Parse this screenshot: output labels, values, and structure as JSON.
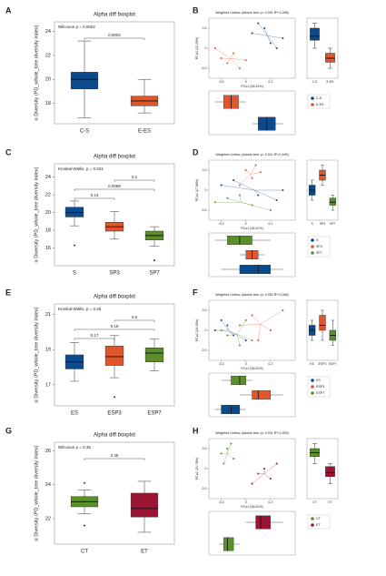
{
  "chart_data": [
    {
      "type": "boxplot",
      "panel": "A",
      "title": "Alpha diff boxplot",
      "annotation": "Wilcoxon p = 0.0002",
      "ylabel": "α Diversity (PD_whole_tree diversity index)",
      "categories": [
        "C-S",
        "E-ES"
      ],
      "colors": [
        "#0b4a8b",
        "#e0552a"
      ],
      "ylim": [
        16.3,
        24.8
      ],
      "yticks": [
        18,
        20,
        22,
        24
      ],
      "boxes": [
        {
          "min": 16.8,
          "q1": 19.2,
          "median": 20,
          "q3": 20.6,
          "max": 23.2,
          "outliers": []
        },
        {
          "min": 17.2,
          "q1": 17.8,
          "median": 18.2,
          "q3": 18.6,
          "max": 20,
          "outliers": []
        }
      ],
      "comparisons": [
        {
          "label": "0.0002",
          "pair": [
            "C-S",
            "E-ES"
          ]
        }
      ]
    },
    {
      "type": "pcoa",
      "panel": "B",
      "title": "Weighted Unifrac (Adonis test: p= 0.001 R²=0.288)",
      "xlabel": "PCo1 (26.51%)",
      "ylabel": "PCo2 (22.25%)",
      "groups": [
        "C-S",
        "E-ES"
      ],
      "colors": [
        "#0b4a8b",
        "#e0552a"
      ],
      "xlim": [
        -0.3,
        0.4
      ],
      "ylim": [
        -0.3,
        0.3
      ],
      "xticks": [
        -0.2,
        0,
        0.2
      ],
      "yticks": [
        -0.2,
        0,
        0.2
      ],
      "points": [
        {
          "x": [
            0.05,
            0.15,
            0.2,
            0.3,
            0.1,
            0.25
          ],
          "y": [
            0.15,
            0.2,
            0.05,
            0.1,
            0.25,
            0
          ]
        },
        {
          "x": [
            -0.2,
            -0.1,
            -0.15,
            -0.05,
            -0.25,
            0
          ],
          "y": [
            -0.1,
            -0.05,
            -0.15,
            -0.2,
            0,
            -0.12
          ]
        }
      ],
      "side_boxes": [
        {
          "min": 0,
          "q1": 0.08,
          "median": 0.12,
          "q3": 0.2,
          "max": 0.25
        },
        {
          "min": -0.2,
          "q1": -0.14,
          "median": -0.1,
          "q3": -0.05,
          "max": 0
        }
      ],
      "bottom_boxes": [
        {
          "min": 0.05,
          "q1": 0.1,
          "median": 0.17,
          "q3": 0.24,
          "max": 0.3
        },
        {
          "min": -0.25,
          "q1": -0.18,
          "median": -0.12,
          "q3": -0.06,
          "max": 0
        }
      ]
    },
    {
      "type": "boxplot",
      "panel": "C",
      "title": "Alpha diff boxplot",
      "annotation": "Kruskal-Wallis, p = 0.021",
      "ylabel": "α Diversity (PD_whole_tree diversity index)",
      "categories": [
        "S",
        "SP3",
        "SP7"
      ],
      "colors": [
        "#0b4a8b",
        "#e0552a",
        "#5a8f29"
      ],
      "ylim": [
        14,
        25.5
      ],
      "yticks": [
        16,
        18,
        20,
        22,
        24
      ],
      "boxes": [
        {
          "min": 18.5,
          "q1": 19.5,
          "median": 20,
          "q3": 20.6,
          "max": 21.3,
          "outliers": [
            16.3
          ]
        },
        {
          "min": 17,
          "q1": 17.9,
          "median": 18.4,
          "q3": 18.9,
          "max": 20.1,
          "outliers": []
        },
        {
          "min": 16.2,
          "q1": 16.9,
          "median": 17.4,
          "q3": 17.9,
          "max": 18.4,
          "outliers": [
            14.6
          ]
        }
      ],
      "comparisons": [
        {
          "label": "0.1",
          "pair": [
            "SP3",
            "SP7"
          ]
        },
        {
          "label": "0.0069",
          "pair": [
            "S",
            "SP7"
          ]
        },
        {
          "label": "0.13",
          "pair": [
            "S",
            "SP3"
          ]
        }
      ]
    },
    {
      "type": "pcoa",
      "panel": "D",
      "title": "Weighted Unifrac (Adonis test: p= 0.011 R²=0.169)",
      "xlabel": "PCo1 (26.51%)",
      "ylabel": "PCo2 (17.86%)",
      "groups": [
        "S",
        "SP3",
        "SP7"
      ],
      "colors": [
        "#0b4a8b",
        "#e0552a",
        "#5a8f29"
      ],
      "xlim": [
        -0.3,
        0.4
      ],
      "ylim": [
        -0.3,
        0.3
      ],
      "xticks": [
        -0.2,
        0,
        0.2
      ],
      "yticks": [
        -0.2,
        0,
        0.2
      ],
      "points": [
        {
          "x": [
            -0.2,
            0.1,
            0.25,
            -0.1,
            0.3
          ],
          "y": [
            0.05,
            -0.05,
            -0.1,
            0.1,
            0
          ]
        },
        {
          "x": [
            0,
            0.05,
            -0.05,
            0.12,
            0.08
          ],
          "y": [
            0.2,
            0.12,
            0.05,
            0.18,
            0.25
          ]
        },
        {
          "x": [
            -0.25,
            -0.15,
            0.05,
            0.2,
            -0.05
          ],
          "y": [
            -0.12,
            -0.08,
            -0.15,
            -0.2,
            -0.05
          ]
        }
      ],
      "side_boxes": [
        {
          "min": -0.1,
          "q1": -0.05,
          "median": 0,
          "q3": 0.05,
          "max": 0.1
        },
        {
          "min": 0.05,
          "q1": 0.1,
          "median": 0.15,
          "q3": 0.2,
          "max": 0.25
        },
        {
          "min": -0.2,
          "q1": -0.15,
          "median": -0.12,
          "q3": -0.08,
          "max": -0.05
        }
      ],
      "bottom_boxes": [
        {
          "min": -0.2,
          "q1": -0.05,
          "median": 0.1,
          "q3": 0.2,
          "max": 0.3
        },
        {
          "min": -0.05,
          "q1": 0,
          "median": 0.05,
          "q3": 0.1,
          "max": 0.15
        },
        {
          "min": -0.25,
          "q1": -0.15,
          "median": -0.05,
          "q3": 0.05,
          "max": 0.2
        }
      ]
    },
    {
      "type": "boxplot",
      "panel": "E",
      "title": "Alpha diff boxplot",
      "annotation": "Kruskal-Wallis, p = 0.45",
      "ylabel": "α Diversity (PD_whole_tree diversity index)",
      "categories": [
        "ES",
        "ESP3",
        "ESP7"
      ],
      "colors": [
        "#0b4a8b",
        "#e0552a",
        "#5a8f29"
      ],
      "ylim": [
        15.8,
        21.6
      ],
      "yticks": [
        17,
        19,
        21
      ],
      "boxes": [
        {
          "min": 17.2,
          "q1": 17.9,
          "median": 18.3,
          "q3": 18.7,
          "max": 19.4,
          "outliers": []
        },
        {
          "min": 17.4,
          "q1": 18.1,
          "median": 18.6,
          "q3": 19.2,
          "max": 19.8,
          "outliers": [
            16.3
          ]
        },
        {
          "min": 17.8,
          "q1": 18.3,
          "median": 18.8,
          "q3": 19.1,
          "max": 19.6,
          "outliers": []
        }
      ],
      "comparisons": [
        {
          "label": "0.6",
          "pair": [
            "ESP3",
            "ESP7"
          ]
        },
        {
          "label": "0.19",
          "pair": [
            "ES",
            "ESP7"
          ]
        },
        {
          "label": "0.17",
          "pair": [
            "ES",
            "ESP3"
          ]
        }
      ]
    },
    {
      "type": "pcoa",
      "panel": "F",
      "title": "Weighted Unifrac (Adonis test: p= 0.052 R²=0.085)",
      "xlabel": "PCo1 (26.51%)",
      "ylabel": "PCo2 (19.40%)",
      "groups": [
        "ES",
        "ESP3",
        "ESP7"
      ],
      "colors": [
        "#0b4a8b",
        "#e0552a",
        "#5a8f29"
      ],
      "xlim": [
        -0.3,
        0.4
      ],
      "ylim": [
        -0.3,
        0.3
      ],
      "xticks": [
        -0.2,
        0,
        0.2
      ],
      "yticks": [
        -0.2,
        0,
        0.2
      ],
      "points": [
        {
          "x": [
            -0.2,
            -0.1,
            -0.15,
            0,
            -0.25
          ],
          "y": [
            0.1,
            -0.05,
            0.05,
            -0.1,
            0
          ]
        },
        {
          "x": [
            0.05,
            0.3,
            0.1,
            -0.05,
            0.2
          ],
          "y": [
            0.15,
            0.2,
            -0.1,
            0.05,
            0
          ]
        },
        {
          "x": [
            -0.15,
            -0.05,
            0,
            -0.2,
            0.05
          ],
          "y": [
            -0.05,
            -0.15,
            0.1,
            0,
            -0.1
          ]
        }
      ],
      "side_boxes": [
        {
          "min": -0.1,
          "q1": -0.05,
          "median": 0,
          "q3": 0.05,
          "max": 0.1
        },
        {
          "min": -0.1,
          "q1": 0,
          "median": 0.05,
          "q3": 0.15,
          "max": 0.2
        },
        {
          "min": -0.15,
          "q1": -0.1,
          "median": -0.05,
          "q3": 0,
          "max": 0.1
        }
      ],
      "bottom_boxes": [
        {
          "min": -0.25,
          "q1": -0.2,
          "median": -0.12,
          "q3": -0.05,
          "max": 0
        },
        {
          "min": -0.05,
          "q1": 0.05,
          "median": 0.1,
          "q3": 0.2,
          "max": 0.3
        },
        {
          "min": -0.2,
          "q1": -0.12,
          "median": -0.05,
          "q3": 0,
          "max": 0.05
        }
      ]
    },
    {
      "type": "boxplot",
      "panel": "G",
      "title": "Alpha diff boxplot",
      "annotation": "Wilcoxon p = 0.35",
      "ylabel": "α Diversity (PD_whole_tree diversity index)",
      "categories": [
        "CT",
        "ET"
      ],
      "colors": [
        "#5a8f29",
        "#9b1433"
      ],
      "ylim": [
        20.5,
        26.5
      ],
      "yticks": [
        22,
        24,
        26
      ],
      "boxes": [
        {
          "min": 22.3,
          "q1": 22.7,
          "median": 23,
          "q3": 23.3,
          "max": 23.7,
          "outliers": [
            24.1,
            21.6
          ]
        },
        {
          "min": 21.2,
          "q1": 22.1,
          "median": 22.6,
          "q3": 23.5,
          "max": 24.2,
          "outliers": []
        }
      ],
      "comparisons": [
        {
          "label": "0.35",
          "pair": [
            "CT",
            "ET"
          ]
        }
      ]
    },
    {
      "type": "pcoa",
      "panel": "H",
      "title": "Weighted Unifrac (Adonis test: p= 0.001 R²=0.459)",
      "xlabel": "PCo1 (26.51%)",
      "ylabel": "PCo2 (21.78%)",
      "groups": [
        "CT",
        "ET"
      ],
      "colors": [
        "#5a8f29",
        "#9b1433"
      ],
      "xlim": [
        -0.3,
        0.4
      ],
      "ylim": [
        -0.3,
        0.3
      ],
      "xticks": [
        -0.2,
        0,
        0.2
      ],
      "yticks": [
        -0.2,
        0,
        0.2
      ],
      "points": [
        {
          "x": [
            -0.2,
            -0.15,
            -0.1,
            -0.18,
            -0.12
          ],
          "y": [
            0.15,
            0.2,
            0.1,
            0.05,
            0.25
          ]
        },
        {
          "x": [
            0.1,
            0.15,
            0.2,
            0.25,
            0.05
          ],
          "y": [
            -0.05,
            0,
            -0.1,
            0.05,
            -0.15
          ]
        }
      ],
      "side_boxes": [
        {
          "min": 0.05,
          "q1": 0.12,
          "median": 0.16,
          "q3": 0.2,
          "max": 0.25
        },
        {
          "min": -0.15,
          "q1": -0.08,
          "median": -0.04,
          "q3": 0.02,
          "max": 0.05
        }
      ],
      "bottom_boxes": [
        {
          "min": -0.22,
          "q1": -0.18,
          "median": -0.15,
          "q3": -0.1,
          "max": -0.05
        },
        {
          "min": 0,
          "q1": 0.08,
          "median": 0.12,
          "q3": 0.2,
          "max": 0.3
        }
      ]
    }
  ]
}
